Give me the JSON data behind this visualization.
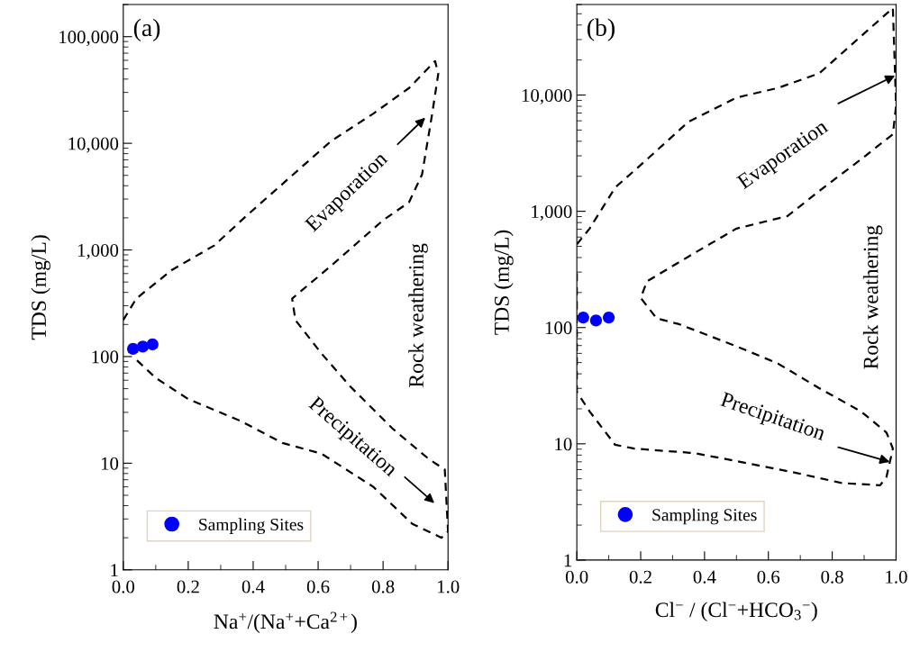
{
  "chart_data": [
    {
      "type": "scatter",
      "xlabel": "Na$^{+}$/(Na$^{+}$+Ca$^{2+}$)",
      "ylabel": "TDS (mg/L)",
      "log": "y",
      "grid": false,
      "legend": "bottom left",
      "xlim": [
        0,
        1
      ],
      "ylim": [
        1,
        200000
      ],
      "xticks": [
        {
          "value": 0,
          "label": "0.0"
        },
        {
          "value": 0.2,
          "label": "0.2"
        },
        {
          "value": 0.4,
          "label": "0.4"
        },
        {
          "value": 0.6,
          "label": "0.6"
        },
        {
          "value": 0.8,
          "label": "0.8"
        },
        {
          "value": 1,
          "label": "1.0"
        }
      ],
      "yticks": [
        1,
        10,
        100,
        {
          "value": 1000,
          "label": "1,000"
        },
        {
          "value": 10000,
          "label": "10,000"
        },
        {
          "value": 100000,
          "label": "100,000"
        }
      ],
      "series": [
        {
          "type": "line",
          "color": "#000000",
          "line_style": "dashed",
          "marker": "none",
          "x": [
            0,
            0.04,
            0.15,
            0.28,
            0.38,
            0.51,
            0.64,
            0.77,
            0.88,
            0.96,
            0.97,
            0.95,
            0.92,
            0.88,
            0.8,
            0.64,
            0.52,
            0.53,
            0.61,
            0.7,
            0.83,
            0.94,
            0.99,
            1.0,
            0.98,
            0.89,
            0.77,
            0.61,
            0.49,
            0.36,
            0.2,
            0.1,
            0.03
          ],
          "values": [
            220,
            350,
            650,
            1100,
            2100,
            4700,
            10500,
            19000,
            33000,
            59000,
            45000,
            18000,
            5100,
            2800,
            1900,
            710,
            350,
            220,
            107,
            52,
            21,
            11,
            8.7,
            2.3,
            2.0,
            2.7,
            6.0,
            12.3,
            15.5,
            25,
            40,
            63,
            100
          ]
        },
        {
          "name": "Sampling Sites",
          "color": "#0000ff",
          "marker": "circle",
          "x": [
            0.03,
            0.06,
            0.09
          ],
          "values": [
            118,
            124,
            130
          ]
        }
      ],
      "annotations": [
        "(a)",
        "Evaporation",
        "Precipitation",
        "Rock weathering"
      ]
    },
    {
      "type": "scatter",
      "xlabel": "Cl$^{−}$ / (Cl$^{−}$+HCO$_{3}$$^{−}$)",
      "ylabel": "TDS (mg/L)",
      "log": "y",
      "grid": false,
      "legend": "bottom left",
      "xlim": [
        0,
        1
      ],
      "ylim": [
        1,
        60000
      ],
      "xticks": [
        {
          "value": 0,
          "label": "0.0"
        },
        {
          "value": 0.2,
          "label": "0.2"
        },
        {
          "value": 0.4,
          "label": "0.4"
        },
        {
          "value": 0.6,
          "label": "0.6"
        },
        {
          "value": 0.8,
          "label": "0.8"
        },
        {
          "value": 1,
          "label": "1.0"
        }
      ],
      "yticks": [
        1,
        10,
        100,
        {
          "value": 1000,
          "label": "1,000"
        },
        {
          "value": 10000,
          "label": "10,000"
        }
      ],
      "series": [
        {
          "type": "line",
          "color": "#000000",
          "line_style": "dashed",
          "marker": "none",
          "x": [
            0,
            0.04,
            0.12,
            0.22,
            0.35,
            0.5,
            0.63,
            0.76,
            0.89,
            0.99,
            1.0,
            0.99,
            0.89,
            0.76,
            0.66,
            0.5,
            0.37,
            0.22,
            0.2,
            0.25,
            0.32,
            0.5,
            0.63,
            0.76,
            0.89,
            0.97,
            0.99,
            0.97,
            0.95,
            0.83,
            0.69,
            0.5,
            0.37,
            0.18,
            0.12,
            0.04,
            0.0,
            0.0,
            0.0,
            0.0
          ],
          "values": [
            520,
            710,
            1600,
            2800,
            5900,
            9500,
            11500,
            15400,
            32000,
            56000,
            8100,
            4600,
            2800,
            1500,
            910,
            710,
            440,
            250,
            180,
            120,
            107,
            69,
            49,
            30,
            19,
            12.5,
            9.1,
            5.2,
            4.4,
            4.6,
            5.6,
            7.1,
            8.3,
            9.1,
            9.8,
            19,
            28,
            46,
            100,
            300
          ]
        },
        {
          "name": "Sampling Sites",
          "color": "#0000ff",
          "marker": "circle",
          "x": [
            0.02,
            0.06,
            0.1
          ],
          "values": [
            122,
            115,
            122
          ]
        }
      ],
      "annotations": [
        "(b)",
        {
          "text": "Evaporation",
          "x": 0.997,
          "y": 14700
        },
        {
          "text": "Precipitation",
          "x": 0.98,
          "y": 7
        },
        "Rock weathering"
      ]
    }
  ]
}
